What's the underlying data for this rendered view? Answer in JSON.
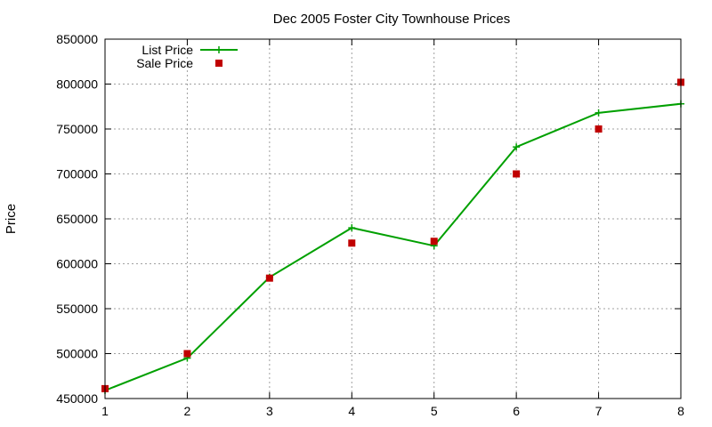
{
  "chart_data": {
    "type": "line",
    "title": "Dec 2005 Foster City Townhouse Prices",
    "xlabel": "",
    "ylabel": "Price",
    "xlim": [
      1,
      8
    ],
    "ylim": [
      450000,
      850000
    ],
    "xticks": [
      1,
      2,
      3,
      4,
      5,
      6,
      7,
      8
    ],
    "yticks": [
      450000,
      500000,
      550000,
      600000,
      650000,
      700000,
      750000,
      800000,
      850000
    ],
    "grid": true,
    "legend_position": "top-left",
    "x": [
      1,
      2,
      3,
      4,
      5,
      6,
      7,
      8
    ],
    "series": [
      {
        "name": "List Price",
        "style": "lines+points",
        "marker": "plus",
        "color": "#00a000",
        "values": [
          459000,
          495000,
          585000,
          640000,
          620000,
          730000,
          768000,
          778000
        ]
      },
      {
        "name": "Sale Price",
        "style": "points",
        "marker": "square",
        "color": "#c00000",
        "values": [
          461000,
          500000,
          584000,
          623000,
          625000,
          700000,
          750000,
          802000
        ]
      }
    ]
  }
}
